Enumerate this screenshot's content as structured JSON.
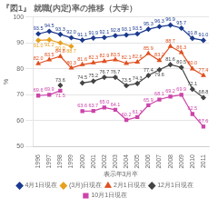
{
  "chart_data": {
    "type": "line",
    "title": "『図1』 就職(内定)率の推移（大学）",
    "x_label": "表示年3月卒",
    "y_label": "%",
    "categories": [
      "1996",
      "1997",
      "1998",
      "1999",
      "2000",
      "2001",
      "2002",
      "2003",
      "2004",
      "2005",
      "2006",
      "2007",
      "2008",
      "2009",
      "2010",
      "2011"
    ],
    "series": [
      {
        "name": "4月1日現在",
        "color": "#1a3a8f",
        "marker": "diamond",
        "values": [
          93.5,
          94.5,
          93.3,
          92.0,
          91.1,
          91.9,
          92.1,
          92.8,
          93.1,
          93.5,
          95.3,
          96.3,
          96.9,
          95.7,
          91.8,
          91.0
        ],
        "value_labels": [
          "93.5",
          "94.5",
          "93.3",
          "92.0",
          "91.1",
          "91.9",
          "92.1",
          "92.8",
          "93.1",
          "93.5",
          "95.3",
          "96.3",
          "96.9",
          "95.7",
          "91.8",
          "91.0"
        ]
      },
      {
        "name": "(3月)日現在",
        "color": "#e8a020",
        "marker": "diamond",
        "values": [
          91.0,
          91.2,
          90.0,
          88.7,
          null,
          null,
          null,
          null,
          null,
          null,
          null,
          null,
          null,
          null,
          null,
          null
        ],
        "value_labels": [
          "91.0",
          "91.2",
          "90.0",
          "88.7",
          null,
          null,
          null,
          null,
          null,
          null,
          null,
          null,
          null,
          null,
          null,
          null
        ]
      },
      {
        "name": "2月1日現在",
        "color": "#e05020",
        "marker": "triangle",
        "values": [
          82.0,
          83.5,
          84.8,
          80.3,
          81.6,
          82.3,
          82.9,
          83.5,
          82.1,
          82.6,
          85.9,
          83.2,
          88.7,
          86.3,
          80.0,
          77.4
        ],
        "value_labels": [
          "82.0",
          "83.5",
          "84.8",
          "80.3",
          "81.6",
          "82.3",
          "82.9",
          "83.5",
          "82.1",
          "82.6",
          "85.9",
          "83.2",
          "88.7",
          "86.3",
          "80.0",
          "77.4"
        ]
      },
      {
        "name": "12月1日現在",
        "color": "#444444",
        "marker": "diamond",
        "values": [
          null,
          null,
          73.6,
          null,
          74.5,
          75.2,
          76.7,
          76.7,
          73.5,
          74.3,
          77.4,
          79.6,
          81.6,
          80.5,
          72.1,
          68.8
        ],
        "value_labels": [
          null,
          null,
          "73.6",
          null,
          "74.5",
          "75.2",
          "76.7",
          "76.7",
          "73.5",
          "74.3",
          "77.4",
          "79.6",
          "81.6",
          "80.5",
          "72.1",
          "68.8"
        ]
      },
      {
        "name": "10月1日現在",
        "color": "#cc44aa",
        "marker": "square",
        "values": [
          69.6,
          69.9,
          71.5,
          null,
          63.6,
          63.7,
          65.0,
          64.1,
          60.2,
          61.3,
          65.9,
          68.1,
          69.2,
          69.9,
          62.5,
          57.6
        ],
        "value_labels": [
          "69.6",
          "69.9",
          "71.5",
          null,
          "63.6",
          "63.7",
          "65.0",
          "64.1",
          "60.2",
          "61.3",
          "65.9",
          "68.1",
          "69.2",
          "69.9",
          "62.5",
          "57.6"
        ]
      }
    ],
    "ylim": [
      50,
      100
    ],
    "yticks": [
      50,
      60,
      70,
      80,
      90,
      100
    ],
    "grid": "y",
    "legend": "bottom",
    "data_labels": true
  }
}
